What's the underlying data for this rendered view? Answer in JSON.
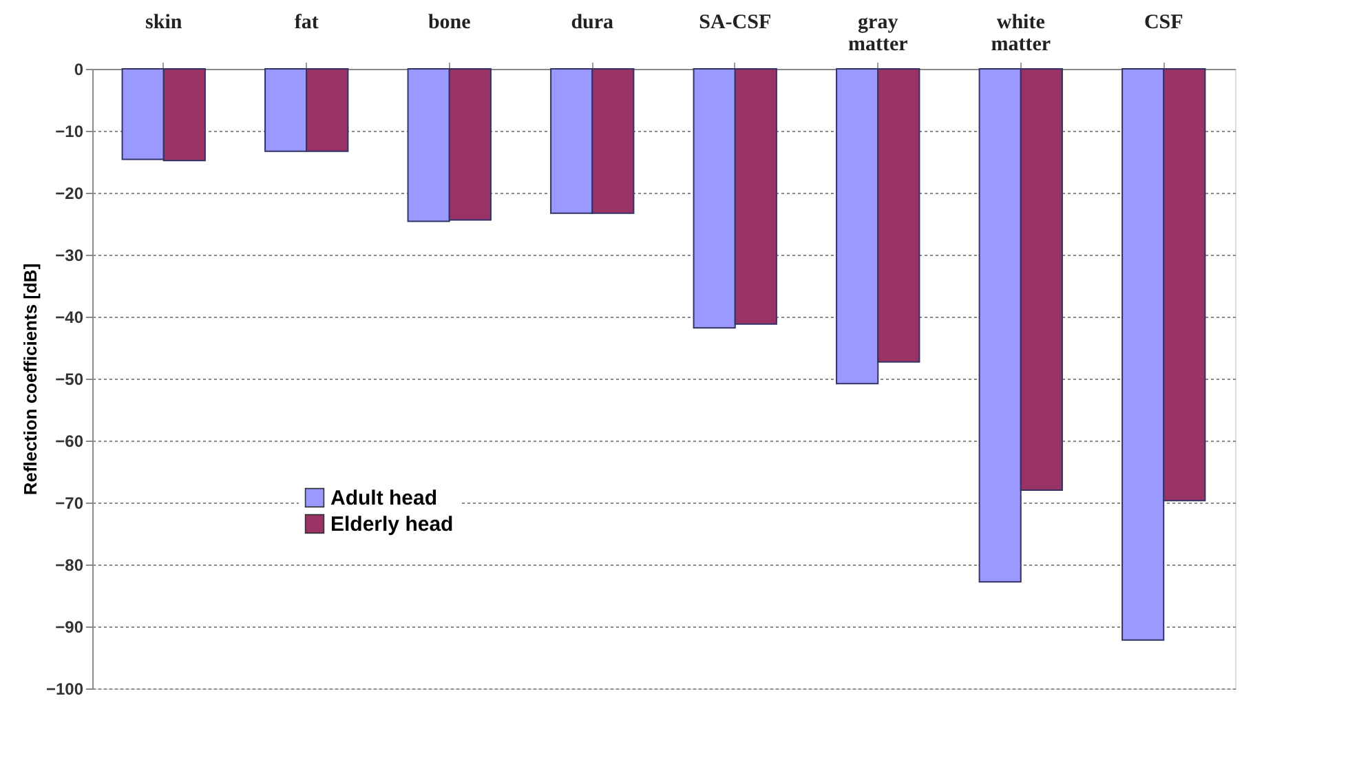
{
  "chart_data": {
    "type": "bar",
    "categories": [
      "skin",
      "fat",
      "bone",
      "dura",
      "SA-CSF",
      "gray matter",
      "white matter",
      "CSF"
    ],
    "ylabel": "Reflection coefficients [dB]",
    "series": [
      {
        "name": "Adult head",
        "color": "#9999ff",
        "values": [
          -14.6,
          -13.3,
          -24.6,
          -23.3,
          -41.8,
          -50.8,
          -82.8,
          -92.2
        ]
      },
      {
        "name": "Elderly head",
        "color": "#993366",
        "values": [
          -14.8,
          -13.3,
          -24.4,
          -23.3,
          -41.2,
          -47.3,
          -68.0,
          -69.7
        ]
      }
    ],
    "ylim": [
      -100,
      0
    ],
    "yticks": [
      0,
      -10,
      -20,
      -30,
      -40,
      -50,
      -60,
      -70,
      -80,
      -90,
      -100
    ],
    "grid": "y",
    "legend": "bottom left"
  }
}
